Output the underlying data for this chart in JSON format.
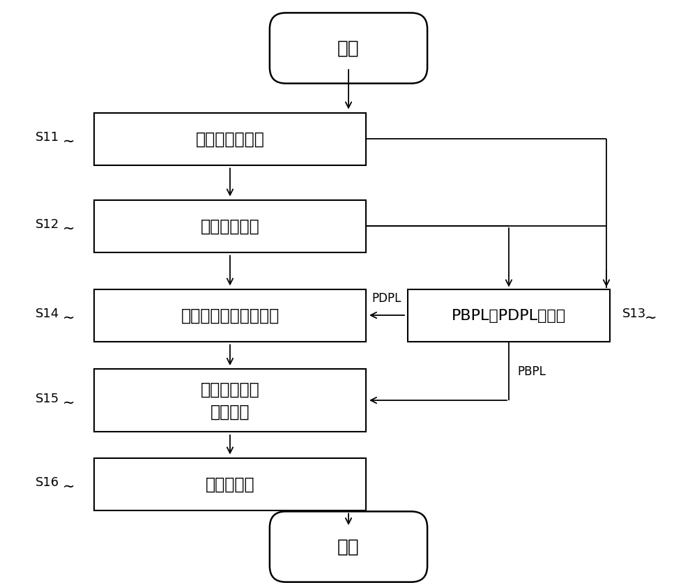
{
  "bg_color": "#ffffff",
  "line_color": "#000000",
  "text_color": "#000000",
  "fig_w": 10.0,
  "fig_h": 8.37,
  "dpi": 100,
  "start_text": "开始",
  "end_text": "结束",
  "left_boxes": [
    {
      "label": "S11",
      "text": "照度分量的提取"
    },
    {
      "label": "S12",
      "text": "柱状图的生成"
    },
    {
      "label": "S14",
      "text": "每个灰度级的差分移位"
    },
    {
      "label": "S15",
      "text": "每个灰度级的\n差分扩展"
    },
    {
      "label": "S16",
      "text": "图像的显示"
    }
  ],
  "right_box_text": "PBPL、PDPL的计算",
  "right_box_label": "S13",
  "pdpl_label": "PDPL",
  "pbpl_label": "PBPL",
  "font_cn": 17,
  "font_label": 13,
  "font_arrow": 12
}
